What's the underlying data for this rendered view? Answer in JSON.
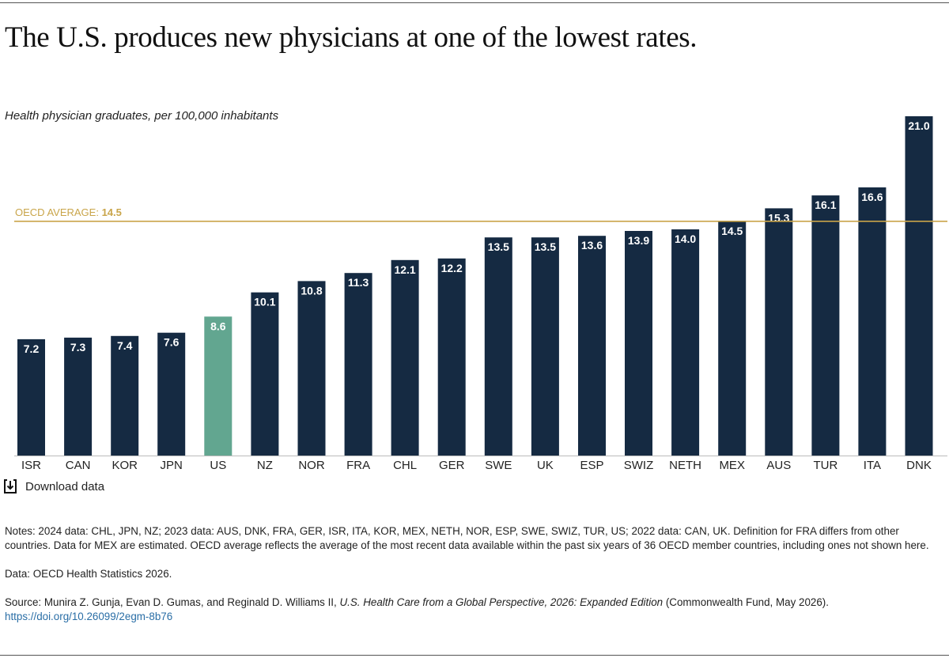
{
  "title": "The U.S. produces new physicians at one of the lowest rates.",
  "subtitle": "Health physician graduates, per 100,000 inhabitants",
  "download_label": "Download data",
  "notes": {
    "notes_text": "Notes: 2024 data: CHL, JPN, NZ; 2023 data: AUS, DNK, FRA, GER, ISR, ITA, KOR, MEX, NETH, NOR, ESP, SWE, SWIZ, TUR, US; 2022 data: CAN, UK. Definition for FRA differs from other countries. Data for MEX are estimated. OECD average reflects the average of the most recent data available within the past six years of 36 OECD member countries, including ones not shown here.",
    "data_text": "Data: OECD Health Statistics 2026.",
    "source_prefix": "Source: Munira Z. Gunja, Evan D. Gumas, and Reginald D. Williams II, ",
    "source_title": "U.S. Health Care from a Global Perspective, 2026: Expanded Edition",
    "source_suffix": " (Commonwealth Fund, May 2026).",
    "doi_link": "https://doi.org/10.26099/2egm-8b76"
  },
  "colors": {
    "bar": "#152a42",
    "highlight": "#62a690",
    "average_line": "#c9a54a",
    "label_text": "#ffffff",
    "axis_text": "#222222"
  },
  "chart_data": {
    "type": "bar",
    "title": "The U.S. produces new physicians at one of the lowest rates.",
    "ylabel": "Health physician graduates, per 100,000 inhabitants",
    "xlabel": "",
    "categories": [
      "ISR",
      "CAN",
      "KOR",
      "JPN",
      "US",
      "NZ",
      "NOR",
      "FRA",
      "CHL",
      "GER",
      "SWE",
      "UK",
      "ESP",
      "SWIZ",
      "NETH",
      "MEX",
      "AUS",
      "TUR",
      "ITA",
      "DNK"
    ],
    "values": [
      7.2,
      7.3,
      7.4,
      7.6,
      8.6,
      10.1,
      10.8,
      11.3,
      12.1,
      12.2,
      13.5,
      13.5,
      13.6,
      13.9,
      14.0,
      14.5,
      15.3,
      16.1,
      16.6,
      21.0
    ],
    "value_labels": [
      "7.2",
      "7.3",
      "7.4",
      "7.6",
      "8.6",
      "10.1",
      "10.8",
      "11.3",
      "12.1",
      "12.2",
      "13.5",
      "13.5",
      "13.6",
      "13.9",
      "14.0",
      "14.5",
      "15.3",
      "16.1",
      "16.6",
      "21.0"
    ],
    "highlight_category": "US",
    "ylim": [
      0,
      21
    ],
    "grid": false,
    "legend": "none",
    "reference_line": {
      "label": "OECD AVERAGE: ",
      "value": 14.5,
      "value_label": "14.5"
    }
  }
}
